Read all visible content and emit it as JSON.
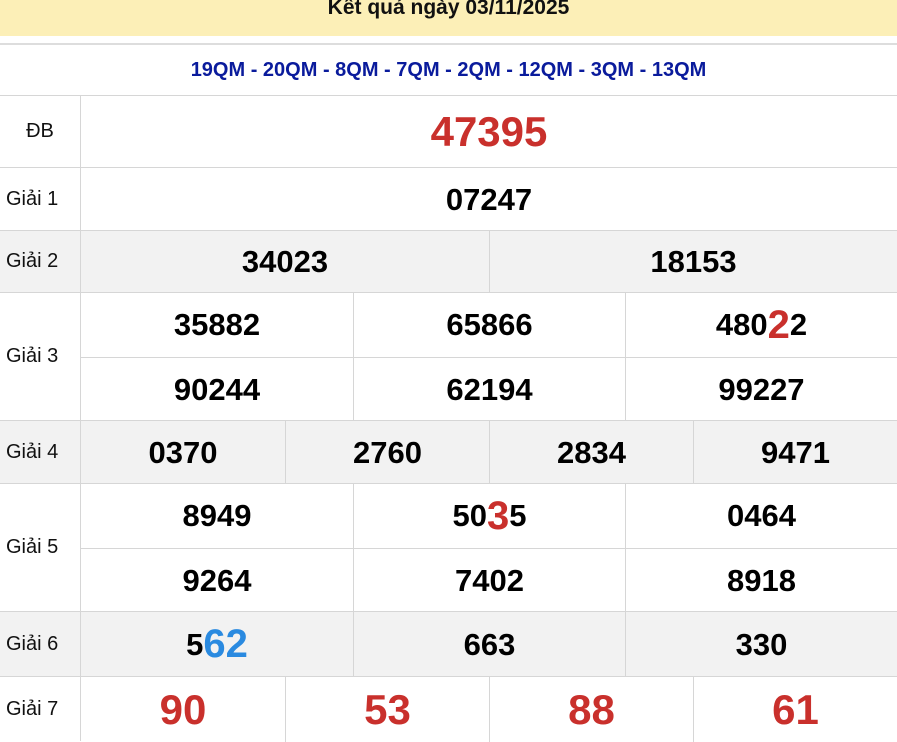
{
  "header": {
    "title": "Kết quả ngày 03/11/2025"
  },
  "codes": "19QM - 20QM - 8QM - 7QM - 2QM - 12QM - 3QM - 13QM",
  "colors": {
    "red": "#c9302c",
    "blue": "#2a8ae0",
    "navy": "#0a1b9c",
    "header_bg": "#fcefb7"
  },
  "prizes": [
    {
      "label": "ĐB",
      "cols": 1,
      "rows": 1,
      "numbers": [
        [
          {
            "t": "47395",
            "c": "big-red"
          }
        ]
      ]
    },
    {
      "label": "Giải 1",
      "cols": 1,
      "rows": 1,
      "numbers": [
        [
          {
            "t": "07247"
          }
        ]
      ]
    },
    {
      "label": "Giải 2",
      "cols": 2,
      "rows": 1,
      "gray": true,
      "numbers": [
        [
          {
            "t": "34023"
          }
        ],
        [
          {
            "t": "18153"
          }
        ]
      ]
    },
    {
      "label": "Giải 3",
      "cols": 3,
      "rows": 2,
      "numbers": [
        [
          {
            "t": "35882"
          }
        ],
        [
          {
            "t": "65866"
          }
        ],
        [
          {
            "t": "480"
          },
          {
            "t": "2",
            "c": "hl-red"
          },
          {
            "t": "2"
          }
        ],
        [
          {
            "t": "90244"
          }
        ],
        [
          {
            "t": "62194"
          }
        ],
        [
          {
            "t": "99227"
          }
        ]
      ]
    },
    {
      "label": "Giải 4",
      "cols": 4,
      "rows": 1,
      "gray": true,
      "numbers": [
        [
          {
            "t": "0370"
          }
        ],
        [
          {
            "t": "2760"
          }
        ],
        [
          {
            "t": "2834"
          }
        ],
        [
          {
            "t": "9471"
          }
        ]
      ]
    },
    {
      "label": "Giải 5",
      "cols": 3,
      "rows": 2,
      "numbers": [
        [
          {
            "t": "8949"
          }
        ],
        [
          {
            "t": "50"
          },
          {
            "t": "3",
            "c": "hl-red"
          },
          {
            "t": "5"
          }
        ],
        [
          {
            "t": "0464"
          }
        ],
        [
          {
            "t": "9264"
          }
        ],
        [
          {
            "t": "7402"
          }
        ],
        [
          {
            "t": "8918"
          }
        ]
      ]
    },
    {
      "label": "Giải 6",
      "cols": 3,
      "rows": 1,
      "gray": true,
      "numbers": [
        [
          {
            "t": "5"
          },
          {
            "t": "62",
            "c": "hl-blue"
          }
        ],
        [
          {
            "t": "663"
          }
        ],
        [
          {
            "t": "330"
          }
        ]
      ]
    },
    {
      "label": "Giải 7",
      "cols": 4,
      "rows": 1,
      "numbers": [
        [
          {
            "t": "90",
            "c": "big-red"
          }
        ],
        [
          {
            "t": "53",
            "c": "big-red"
          }
        ],
        [
          {
            "t": "88",
            "c": "big-red"
          }
        ],
        [
          {
            "t": "61",
            "c": "big-red"
          }
        ]
      ]
    }
  ]
}
